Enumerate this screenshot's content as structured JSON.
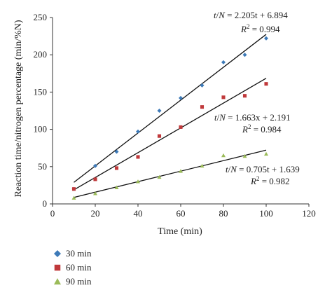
{
  "chart_data": {
    "type": "scatter",
    "title": "",
    "xlabel": "Time (min)",
    "ylabel": "Reaction time/nitrogen percentage (min/%N)",
    "xlim": [
      0,
      120
    ],
    "ylim": [
      0,
      250
    ],
    "xticks": [
      "0",
      "20",
      "40",
      "60",
      "80",
      "100",
      "120"
    ],
    "yticks": [
      "0",
      "50",
      "100",
      "150",
      "200",
      "250"
    ],
    "grid": false,
    "legend_position": "bottom-left",
    "series": [
      {
        "name": "30 min",
        "marker": "diamond",
        "color": "#3d7ab8",
        "x": [
          10,
          20,
          30,
          40,
          50,
          60,
          70,
          80,
          90,
          100
        ],
        "y": [
          20,
          51,
          70,
          97,
          125,
          142,
          159,
          190,
          200,
          222
        ],
        "fit": {
          "slope": 2.205,
          "intercept": 6.894,
          "x_range": [
            10,
            100
          ]
        },
        "equation": "t/N = 2.205t + 6.894",
        "r2": "R2 = 0.994"
      },
      {
        "name": "60 min",
        "marker": "square",
        "color": "#c0393b",
        "x": [
          10,
          20,
          30,
          40,
          50,
          60,
          70,
          80,
          90,
          100
        ],
        "y": [
          20,
          33,
          48,
          63,
          91,
          103,
          130,
          143,
          145,
          161
        ],
        "fit": {
          "slope": 1.663,
          "intercept": 2.191,
          "x_range": [
            10,
            100
          ]
        },
        "equation": "t/N = 1.663x + 2.191",
        "r2": "R2 = 0.984"
      },
      {
        "name": "90 min",
        "marker": "triangle",
        "color": "#9bbb59",
        "x": [
          10,
          20,
          30,
          40,
          50,
          60,
          70,
          80,
          90,
          100
        ],
        "y": [
          8,
          14,
          22,
          30,
          36,
          44,
          51,
          65,
          64,
          67
        ],
        "fit": {
          "slope": 0.705,
          "intercept": 1.639,
          "x_range": [
            10,
            100
          ]
        },
        "equation": "t/N = 0.705t + 1.639",
        "r2": "R2 = 0.982"
      }
    ]
  }
}
